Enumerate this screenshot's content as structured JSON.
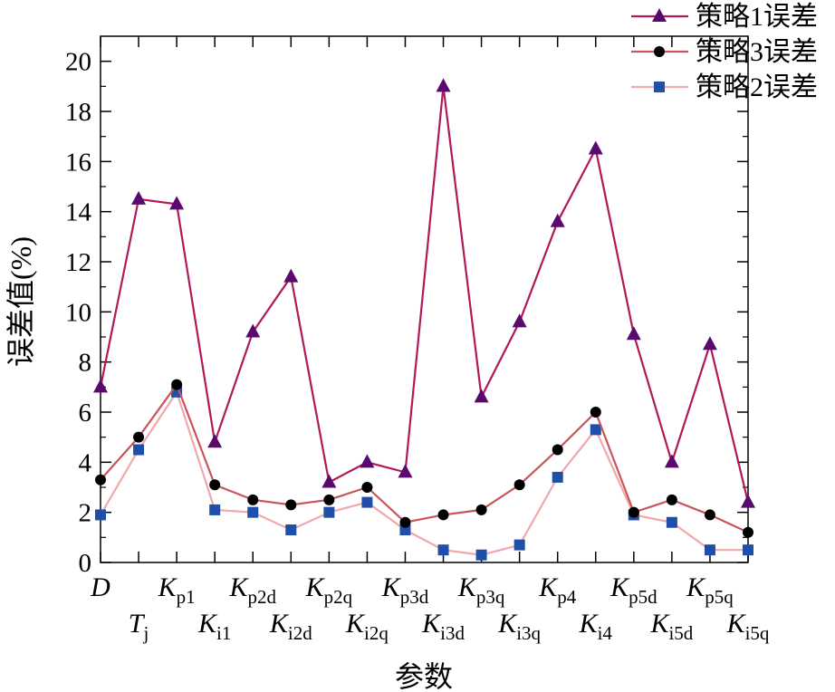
{
  "chart_data": {
    "type": "line",
    "xlabel": "参数",
    "ylabel": "误差值(%)",
    "ylim": [
      0,
      21
    ],
    "yticks": [
      0,
      2,
      4,
      6,
      8,
      10,
      12,
      14,
      16,
      18,
      20
    ],
    "grid": false,
    "legend_position": "top-right",
    "categories": [
      {
        "base": "D",
        "sub": ""
      },
      {
        "base": "T",
        "sub": "j"
      },
      {
        "base": "K",
        "sub": "p1"
      },
      {
        "base": "K",
        "sub": "i1"
      },
      {
        "base": "K",
        "sub": "p2d"
      },
      {
        "base": "K",
        "sub": "i2d"
      },
      {
        "base": "K",
        "sub": "p2q"
      },
      {
        "base": "K",
        "sub": "i2q"
      },
      {
        "base": "K",
        "sub": "p3d"
      },
      {
        "base": "K",
        "sub": "i3d"
      },
      {
        "base": "K",
        "sub": "p3q"
      },
      {
        "base": "K",
        "sub": "i3q"
      },
      {
        "base": "K",
        "sub": "p4"
      },
      {
        "base": "K",
        "sub": "i4"
      },
      {
        "base": "K",
        "sub": "p5d"
      },
      {
        "base": "K",
        "sub": "i5d"
      },
      {
        "base": "K",
        "sub": "p5q"
      },
      {
        "base": "K",
        "sub": "i5q"
      }
    ],
    "series": [
      {
        "name": "策略1误差",
        "marker": "triangle",
        "line_color": "#b0185a",
        "marker_color": "#5a0a6e",
        "values": [
          7.0,
          14.5,
          14.3,
          4.8,
          9.2,
          11.4,
          3.2,
          4.0,
          3.6,
          19.0,
          6.6,
          9.6,
          13.6,
          16.5,
          9.1,
          4.0,
          8.7,
          2.4
        ]
      },
      {
        "name": "策略3误差",
        "marker": "circle",
        "line_color": "#c8555a",
        "marker_color": "#000000",
        "values": [
          3.3,
          5.0,
          7.1,
          3.1,
          2.5,
          2.3,
          2.5,
          3.0,
          1.6,
          1.9,
          2.1,
          3.1,
          4.5,
          6.0,
          2.0,
          2.5,
          1.9,
          1.2
        ]
      },
      {
        "name": "策略2误差",
        "marker": "square",
        "line_color": "#f0a8ab",
        "marker_color": "#1f4fa8",
        "values": [
          1.9,
          4.5,
          6.8,
          2.1,
          2.0,
          1.3,
          2.0,
          2.4,
          1.3,
          0.5,
          0.3,
          0.7,
          3.4,
          5.3,
          1.9,
          1.6,
          0.5,
          0.5
        ]
      }
    ]
  }
}
